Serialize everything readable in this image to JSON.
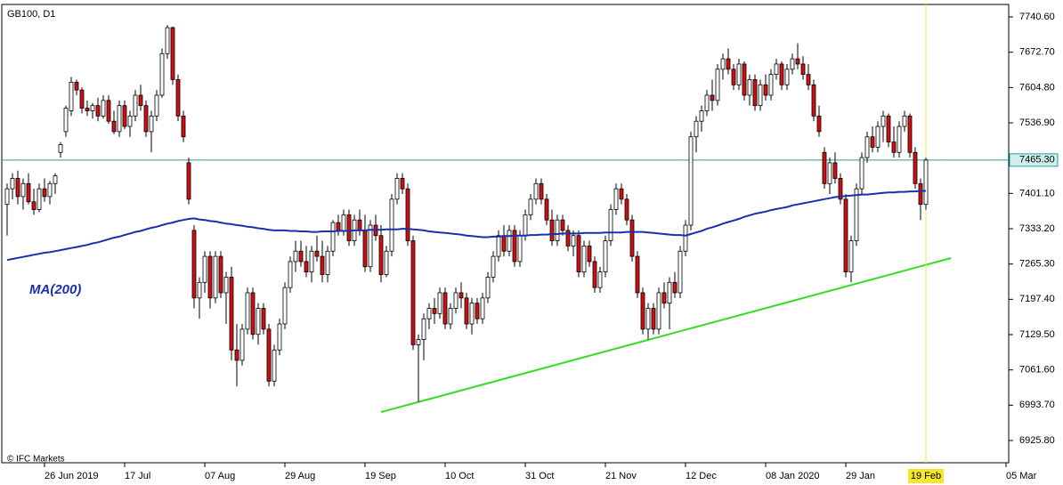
{
  "chart_data": {
    "type": "candlestick",
    "title": "GB100, D1",
    "watermark": "© IFC Markets",
    "up_color": "#ffffff",
    "down_color": "#d01010",
    "edge_color": "#000000",
    "xlim": [
      -1,
      187.5
    ],
    "ylim": [
      6883.0,
      7764.6
    ],
    "yticks": [
      {
        "value": 7740.6,
        "label": "7740.60"
      },
      {
        "value": 7672.7,
        "label": "7672.70"
      },
      {
        "value": 7604.8,
        "label": "7604.80"
      },
      {
        "value": 7536.9,
        "label": "7536.90"
      },
      {
        "value": 7401.1,
        "label": "7401.10"
      },
      {
        "value": 7333.2,
        "label": "7333.20"
      },
      {
        "value": 7265.3,
        "label": "7265.30"
      },
      {
        "value": 7197.4,
        "label": "7197.40"
      },
      {
        "value": 7129.5,
        "label": "7129.50"
      },
      {
        "value": 7061.6,
        "label": "7061.60"
      },
      {
        "value": 6993.7,
        "label": "6993.70"
      },
      {
        "value": 6925.8,
        "label": "6925.80"
      }
    ],
    "xticks": [
      {
        "value": 7,
        "label": "26 Jun 2019"
      },
      {
        "value": 22,
        "label": "17 Jul"
      },
      {
        "value": 37,
        "label": "07 Aug"
      },
      {
        "value": 52,
        "label": "29 Aug"
      },
      {
        "value": 67,
        "label": "19 Sep"
      },
      {
        "value": 82,
        "label": "10 Oct"
      },
      {
        "value": 97,
        "label": "31 Oct"
      },
      {
        "value": 112,
        "label": "21 Nov"
      },
      {
        "value": 127,
        "label": "12 Dec"
      },
      {
        "value": 142,
        "label": "08 Jan 2020"
      },
      {
        "value": 157,
        "label": "29 Jan"
      },
      {
        "value": 187,
        "label": "05 Mar"
      }
    ],
    "cursor": {
      "value": 172,
      "label": "19 Feb",
      "color": "#f5e82a"
    },
    "last_price": {
      "value": 7465.3,
      "label": "7465.30",
      "color": "#2a9d9d"
    },
    "ma": {
      "name": "MA(200)",
      "color": "#1a2fb0",
      "values": [
        7273,
        7275,
        7277,
        7279,
        7281,
        7283,
        7285,
        7287,
        7288,
        7290,
        7292,
        7294,
        7296,
        7298,
        7300,
        7302,
        7305,
        7307,
        7310,
        7313,
        7316,
        7318,
        7321,
        7324,
        7327,
        7329,
        7332,
        7335,
        7337,
        7340,
        7343,
        7345,
        7348,
        7350,
        7352,
        7353,
        7351,
        7350,
        7348,
        7347,
        7345,
        7343,
        7342,
        7340,
        7339,
        7337,
        7336,
        7334,
        7333,
        7331,
        7330,
        7330,
        7330,
        7329,
        7329,
        7328,
        7328,
        7327,
        7327,
        7328,
        7328,
        7328,
        7329,
        7329,
        7329,
        7330,
        7330,
        7330,
        7331,
        7331,
        7331,
        7332,
        7332,
        7332,
        7333,
        7333,
        7332,
        7331,
        7330,
        7328,
        7327,
        7326,
        7325,
        7324,
        7323,
        7322,
        7320,
        7319,
        7318,
        7317,
        7317,
        7318,
        7318,
        7319,
        7319,
        7320,
        7320,
        7320,
        7321,
        7321,
        7322,
        7322,
        7323,
        7323,
        7324,
        7324,
        7324,
        7324,
        7325,
        7325,
        7325,
        7325,
        7326,
        7326,
        7326,
        7326,
        7327,
        7327,
        7327,
        7327,
        7326,
        7325,
        7324,
        7323,
        7322,
        7321,
        7321,
        7320,
        7323,
        7326,
        7329,
        7333,
        7336,
        7339,
        7343,
        7346,
        7349,
        7352,
        7356,
        7359,
        7362,
        7364,
        7366,
        7369,
        7371,
        7373,
        7375,
        7378,
        7380,
        7382,
        7384,
        7386,
        7388,
        7390,
        7392,
        7394,
        7395,
        7396,
        7397,
        7398,
        7399,
        7399,
        7400,
        7401,
        7402,
        7403,
        7403,
        7404,
        7404,
        7405,
        7405,
        7406,
        7406
      ]
    },
    "trendline": {
      "color": "#33dd22",
      "start": {
        "index": 70,
        "value": 6980.5
      },
      "end": {
        "index": 176.7,
        "value": 7276.7
      }
    },
    "ohlc": [
      [
        7380,
        7420,
        7320,
        7410
      ],
      [
        7410,
        7440,
        7390,
        7430
      ],
      [
        7430,
        7445,
        7380,
        7395
      ],
      [
        7395,
        7430,
        7370,
        7420
      ],
      [
        7420,
        7440,
        7380,
        7385
      ],
      [
        7385,
        7410,
        7360,
        7370
      ],
      [
        7370,
        7420,
        7365,
        7410
      ],
      [
        7410,
        7430,
        7385,
        7395
      ],
      [
        7395,
        7425,
        7380,
        7420
      ],
      [
        7420,
        7440,
        7400,
        7435
      ],
      [
        7480,
        7500,
        7470,
        7495
      ],
      [
        7520,
        7570,
        7510,
        7565
      ],
      [
        7560,
        7625,
        7550,
        7615
      ],
      [
        7615,
        7620,
        7590,
        7600
      ],
      [
        7600,
        7605,
        7555,
        7565
      ],
      [
        7565,
        7580,
        7550,
        7560
      ],
      [
        7560,
        7575,
        7545,
        7570
      ],
      [
        7570,
        7585,
        7540,
        7550
      ],
      [
        7550,
        7590,
        7545,
        7580
      ],
      [
        7580,
        7590,
        7535,
        7540
      ],
      [
        7540,
        7560,
        7515,
        7520
      ],
      [
        7520,
        7580,
        7510,
        7570
      ],
      [
        7570,
        7580,
        7525,
        7530
      ],
      [
        7530,
        7560,
        7510,
        7550
      ],
      [
        7550,
        7600,
        7540,
        7590
      ],
      [
        7590,
        7610,
        7560,
        7570
      ],
      [
        7570,
        7580,
        7510,
        7520
      ],
      [
        7520,
        7560,
        7480,
        7550
      ],
      [
        7550,
        7600,
        7540,
        7590
      ],
      [
        7590,
        7680,
        7585,
        7670
      ],
      [
        7670,
        7725,
        7660,
        7720
      ],
      [
        7720,
        7722,
        7610,
        7620
      ],
      [
        7620,
        7630,
        7540,
        7550
      ],
      [
        7550,
        7560,
        7500,
        7510
      ],
      [
        7460,
        7470,
        7380,
        7390
      ],
      [
        7330,
        7340,
        7180,
        7200
      ],
      [
        7200,
        7240,
        7160,
        7230
      ],
      [
        7230,
        7290,
        7210,
        7280
      ],
      [
        7280,
        7290,
        7180,
        7200
      ],
      [
        7200,
        7290,
        7190,
        7280
      ],
      [
        7280,
        7290,
        7200,
        7210
      ],
      [
        7210,
        7250,
        7150,
        7240
      ],
      [
        7240,
        7260,
        7080,
        7100
      ],
      [
        7100,
        7150,
        7030,
        7080
      ],
      [
        7080,
        7150,
        7070,
        7140
      ],
      [
        7140,
        7220,
        7130,
        7210
      ],
      [
        7210,
        7220,
        7120,
        7130
      ],
      [
        7130,
        7190,
        7110,
        7180
      ],
      [
        7180,
        7190,
        7130,
        7140
      ],
      [
        7140,
        7150,
        7030,
        7040
      ],
      [
        7040,
        7110,
        7030,
        7100
      ],
      [
        7100,
        7160,
        7090,
        7150
      ],
      [
        7150,
        7230,
        7140,
        7220
      ],
      [
        7220,
        7280,
        7210,
        7270
      ],
      [
        7270,
        7310,
        7250,
        7290
      ],
      [
        7290,
        7310,
        7260,
        7270
      ],
      [
        7270,
        7300,
        7240,
        7250
      ],
      [
        7250,
        7300,
        7230,
        7290
      ],
      [
        7290,
        7320,
        7270,
        7280
      ],
      [
        7280,
        7310,
        7230,
        7245
      ],
      [
        7245,
        7300,
        7230,
        7290
      ],
      [
        7290,
        7350,
        7280,
        7345
      ],
      [
        7345,
        7360,
        7320,
        7330
      ],
      [
        7330,
        7370,
        7320,
        7360
      ],
      [
        7360,
        7370,
        7300,
        7310
      ],
      [
        7310,
        7360,
        7300,
        7350
      ],
      [
        7350,
        7370,
        7320,
        7330
      ],
      [
        7330,
        7360,
        7250,
        7260
      ],
      [
        7260,
        7350,
        7250,
        7340
      ],
      [
        7340,
        7360,
        7310,
        7320
      ],
      [
        7320,
        7340,
        7230,
        7245
      ],
      [
        7245,
        7300,
        7240,
        7290
      ],
      [
        7290,
        7400,
        7280,
        7390
      ],
      [
        7390,
        7440,
        7380,
        7430
      ],
      [
        7430,
        7440,
        7400,
        7410
      ],
      [
        7410,
        7420,
        7300,
        7310
      ],
      [
        7310,
        7320,
        7100,
        7110
      ],
      [
        7110,
        7130,
        7000,
        7120
      ],
      [
        7120,
        7170,
        7080,
        7160
      ],
      [
        7160,
        7190,
        7140,
        7180
      ],
      [
        7180,
        7200,
        7150,
        7170
      ],
      [
        7170,
        7220,
        7160,
        7210
      ],
      [
        7210,
        7220,
        7140,
        7150
      ],
      [
        7150,
        7190,
        7140,
        7180
      ],
      [
        7180,
        7220,
        7170,
        7210
      ],
      [
        7210,
        7230,
        7180,
        7200
      ],
      [
        7200,
        7210,
        7140,
        7150
      ],
      [
        7150,
        7200,
        7130,
        7190
      ],
      [
        7190,
        7200,
        7150,
        7160
      ],
      [
        7160,
        7210,
        7150,
        7200
      ],
      [
        7200,
        7250,
        7190,
        7240
      ],
      [
        7240,
        7290,
        7230,
        7280
      ],
      [
        7280,
        7330,
        7270,
        7320
      ],
      [
        7320,
        7340,
        7280,
        7290
      ],
      [
        7290,
        7340,
        7280,
        7330
      ],
      [
        7330,
        7340,
        7260,
        7270
      ],
      [
        7270,
        7330,
        7260,
        7320
      ],
      [
        7320,
        7370,
        7310,
        7360
      ],
      [
        7360,
        7400,
        7350,
        7390
      ],
      [
        7390,
        7430,
        7380,
        7420
      ],
      [
        7420,
        7430,
        7380,
        7390
      ],
      [
        7390,
        7400,
        7340,
        7350
      ],
      [
        7350,
        7370,
        7300,
        7310
      ],
      [
        7310,
        7360,
        7300,
        7350
      ],
      [
        7350,
        7360,
        7320,
        7330
      ],
      [
        7330,
        7340,
        7290,
        7300
      ],
      [
        7300,
        7330,
        7280,
        7320
      ],
      [
        7320,
        7330,
        7240,
        7250
      ],
      [
        7250,
        7310,
        7240,
        7300
      ],
      [
        7300,
        7310,
        7260,
        7270
      ],
      [
        7270,
        7280,
        7210,
        7220
      ],
      [
        7220,
        7260,
        7210,
        7250
      ],
      [
        7250,
        7320,
        7240,
        7310
      ],
      [
        7310,
        7380,
        7300,
        7370
      ],
      [
        7370,
        7420,
        7360,
        7410
      ],
      [
        7410,
        7420,
        7380,
        7390
      ],
      [
        7390,
        7400,
        7340,
        7350
      ],
      [
        7350,
        7360,
        7270,
        7280
      ],
      [
        7280,
        7290,
        7200,
        7210
      ],
      [
        7210,
        7220,
        7130,
        7140
      ],
      [
        7140,
        7190,
        7120,
        7180
      ],
      [
        7180,
        7190,
        7130,
        7140
      ],
      [
        7140,
        7220,
        7130,
        7210
      ],
      [
        7210,
        7230,
        7180,
        7190
      ],
      [
        7190,
        7240,
        7140,
        7230
      ],
      [
        7230,
        7250,
        7200,
        7210
      ],
      [
        7210,
        7300,
        7200,
        7290
      ],
      [
        7290,
        7350,
        7280,
        7340
      ],
      [
        7340,
        7520,
        7330,
        7510
      ],
      [
        7510,
        7550,
        7480,
        7540
      ],
      [
        7540,
        7570,
        7520,
        7560
      ],
      [
        7560,
        7600,
        7550,
        7590
      ],
      [
        7590,
        7620,
        7560,
        7580
      ],
      [
        7580,
        7650,
        7570,
        7640
      ],
      [
        7640,
        7670,
        7620,
        7660
      ],
      [
        7660,
        7680,
        7630,
        7640
      ],
      [
        7640,
        7650,
        7600,
        7610
      ],
      [
        7610,
        7660,
        7600,
        7650
      ],
      [
        7650,
        7655,
        7580,
        7590
      ],
      [
        7590,
        7630,
        7570,
        7620
      ],
      [
        7620,
        7630,
        7560,
        7570
      ],
      [
        7570,
        7620,
        7560,
        7610
      ],
      [
        7610,
        7630,
        7580,
        7590
      ],
      [
        7590,
        7640,
        7580,
        7630
      ],
      [
        7630,
        7660,
        7620,
        7650
      ],
      [
        7650,
        7655,
        7600,
        7610
      ],
      [
        7610,
        7650,
        7600,
        7640
      ],
      [
        7640,
        7670,
        7630,
        7660
      ],
      [
        7660,
        7690,
        7640,
        7650
      ],
      [
        7650,
        7665,
        7620,
        7630
      ],
      [
        7630,
        7650,
        7600,
        7610
      ],
      [
        7610,
        7620,
        7540,
        7550
      ],
      [
        7550,
        7570,
        7510,
        7520
      ],
      [
        7480,
        7490,
        7410,
        7420
      ],
      [
        7420,
        7470,
        7400,
        7460
      ],
      [
        7460,
        7480,
        7420,
        7430
      ],
      [
        7430,
        7440,
        7380,
        7390
      ],
      [
        7390,
        7400,
        7240,
        7250
      ],
      [
        7250,
        7320,
        7230,
        7310
      ],
      [
        7310,
        7420,
        7300,
        7410
      ],
      [
        7410,
        7480,
        7400,
        7470
      ],
      [
        7470,
        7520,
        7460,
        7510
      ],
      [
        7510,
        7530,
        7480,
        7490
      ],
      [
        7490,
        7540,
        7480,
        7530
      ],
      [
        7530,
        7560,
        7500,
        7550
      ],
      [
        7550,
        7555,
        7490,
        7500
      ],
      [
        7500,
        7530,
        7470,
        7480
      ],
      [
        7480,
        7540,
        7470,
        7530
      ],
      [
        7530,
        7560,
        7520,
        7550
      ],
      [
        7550,
        7555,
        7470,
        7480
      ],
      [
        7480,
        7490,
        7410,
        7420
      ],
      [
        7420,
        7430,
        7350,
        7380
      ],
      [
        7380,
        7470,
        7370,
        7465.3
      ]
    ]
  }
}
